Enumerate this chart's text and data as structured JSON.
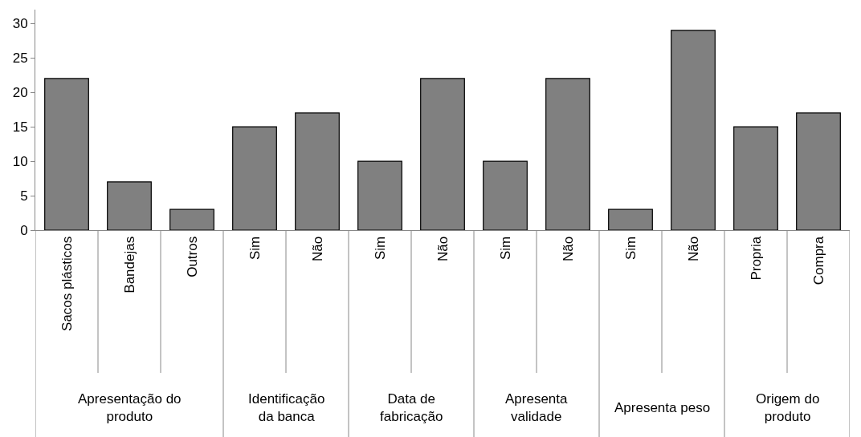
{
  "chart_data": {
    "type": "bar",
    "categories": [
      "Sacos plásticos",
      "Bandejas",
      "Outros",
      "Sim",
      "Não",
      "Sim",
      "Não",
      "Sim",
      "Não",
      "Sim",
      "Não",
      "Propria",
      "Compra"
    ],
    "values": [
      22,
      7,
      3,
      15,
      17,
      10,
      22,
      10,
      22,
      3,
      29,
      15,
      17
    ],
    "color": "#808080",
    "ylim": [
      0,
      32
    ],
    "yticks": [
      0,
      5,
      10,
      15,
      20,
      25,
      30
    ],
    "grid": false,
    "annotations": [
      "Apresentação do produto",
      "Identificação da banca",
      "Data de fabricação",
      "Apresenta validade",
      "Apresenta peso",
      "Origem do produto"
    ]
  }
}
